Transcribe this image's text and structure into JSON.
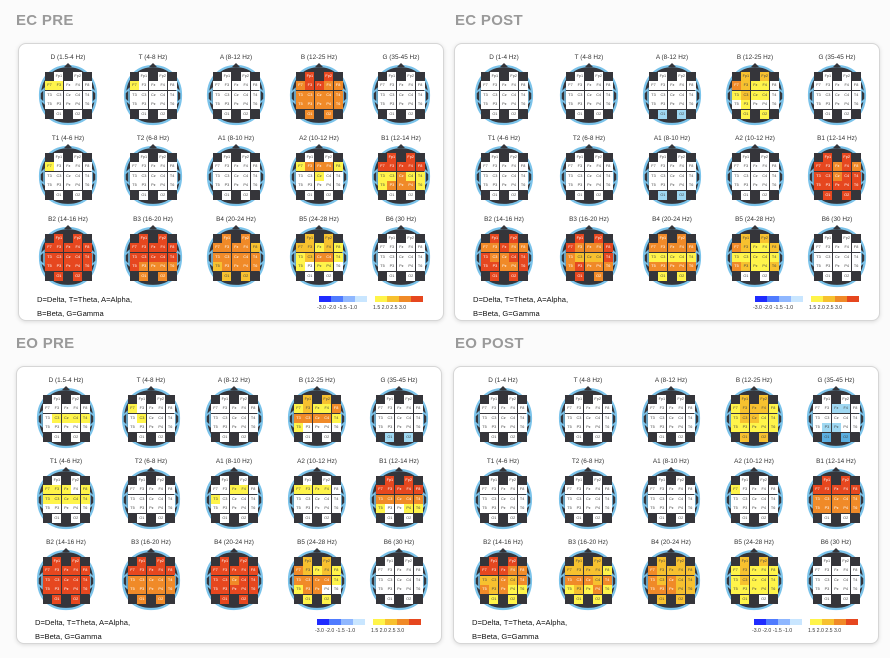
{
  "legend_lines": [
    "D=Delta, T=Theta, A=Alpha,",
    "B=Beta, G=Gamma"
  ],
  "scale_neg_ticks": "-3.0 -2.0 -1.5 -1.0",
  "scale_pos_ticks": "1.5  2.0  2.5  3.0",
  "scale_neg_colors": [
    "#1f2bff",
    "#4f7bff",
    "#8fb7ff",
    "#c9e6ff"
  ],
  "scale_pos_colors": [
    "#fff44a",
    "#f7c12f",
    "#f08a28",
    "#e6471f"
  ],
  "electrode_labels": [
    "Fp1",
    "Fp2",
    "F7",
    "F3",
    "Fz",
    "F4",
    "F8",
    "T3",
    "C3",
    "Cz",
    "C4",
    "T4",
    "T5",
    "P3",
    "Pz",
    "P4",
    "T6",
    "O1",
    "O2"
  ],
  "level_colors": {
    "w": "#ffffff",
    "y": "#fff44a",
    "Y": "#f7c12f",
    "o": "#f08a28",
    "r": "#e6471f",
    "b": "#9fd8f2",
    "B": "#5aaee0"
  },
  "panels": [
    {
      "title": "EC PRE",
      "bands": [
        "D (1.5-4 Hz)",
        "T (4-8 Hz)",
        "A (8-12 Hz)",
        "B (12-25 Hz)",
        "G (35-45 Hz)",
        "T1 (4-6 Hz)",
        "T2 (6-8 Hz)",
        "A1 (8-10 Hz)",
        "A2 (10-12 Hz)",
        "B1 (12-14 Hz)",
        "B2 (14-16 Hz)",
        "B3 (16-20 Hz)",
        "B4 (20-24 Hz)",
        "B5 (24-28 Hz)",
        "B6 (30 Hz)"
      ],
      "levels": [
        "wwyywwwwwwwwwwwwwww",
        "wwywwwwwwwwwwwwwwww",
        "wwwwwwwwwwwwwwwwwww",
        "rrorroooooooooooooo",
        "wwwwwwwwwwwwwwwwwww",
        "wwywwwwwwwwwwwwwwww",
        "wwwwwwwwwwwwwwwwwww",
        "wwwwwwwwwwwwwwwwwww",
        "wwyoooywwywwwwwwwww",
        "rrrrrrryyoyyyoooyww",
        "rrrrrrrrrrrrrrrrrrr",
        "rrrrrrrrrrrrroooooo",
        "ooooooYoooooYooooYY",
        "YYYYyYyyYooyywyywww",
        "wwwwwwwwwwwwwwwwwww"
      ]
    },
    {
      "title": "EC POST",
      "bands": [
        "D (1-4 Hz)",
        "T (4-8 Hz)",
        "A (8-12 Hz)",
        "B (12-25 Hz)",
        "G (35-45 Hz)",
        "T1 (4-6 Hz)",
        "T2 (6-8 Hz)",
        "A1 (8-10 Hz)",
        "A2 (10-12 Hz)",
        "B1 (12-14 Hz)",
        "B2 (14-16 Hz)",
        "B3 (16-20 Hz)",
        "B4 (20-24 Hz)",
        "B5 (24-28 Hz)",
        "B6 (30 Hz)"
      ],
      "levels": [
        "wwwwwwwwwwwwwwwwwww",
        "wwwwwwwwwwwwwwwwwww",
        "wwwwwwwwwwwwwwwwwbb",
        "YYoYyywyYyywwywwwyy",
        "wwwwwwwwwwwwwwwwwww",
        "wwwwwwwwwwwwwwwwwww",
        "wwwwwwwwwwwwwwwwwww",
        "wwwwwwwwwwwwwwwwwbb",
        "wwwwwwwwwwwwwwwwwww",
        "rrrrororrorrrrrrrrr",
        "rroorooroorrrroorrr",
        "rrroooroYYYroroooro",
        "oooooooyyyyyoooooyy",
        "YYoYyyYyyyyyoYyyYww",
        "wwwwwwwwwwwwwwwwwww"
      ]
    },
    {
      "title": "EO PRE",
      "bands": [
        "D (1.5-4 Hz)",
        "T (4-8 Hz)",
        "A (8-12 Hz)",
        "B (12-25 Hz)",
        "G (35-45 Hz)",
        "T1 (4-6 Hz)",
        "T2 (6-8 Hz)",
        "A1 (8-10 Hz)",
        "A2 (10-12 Hz)",
        "B1 (12-14 Hz)",
        "B2 (14-16 Hz)",
        "B3 (16-20 Hz)",
        "B4 (20-24 Hz)",
        "B5 (24-28 Hz)",
        "B6 (30 Hz)"
      ],
      "levels": [
        "wwwwwwwwyyyywwwwwww",
        "wwywwwwwywwwwwwwwww",
        "wwwwwwwwwwwwwwwwwww",
        "YYyYyyoooooyywwwwww",
        "wwwwwwwwwwwwwwwwwbb",
        "wwyyywyyyyyywwwwwww",
        "wwwwwwwwwwwwwwwwwww",
        "wwwwyywywwwwwwwwwww",
        "wwyyyywwwwwwwwwwwww",
        "rrrrrrroooooywwyyww",
        "rrrrrrrrrrrrrrrrrrr",
        "rrrrrrroooooooooooo",
        "rrrrrrrrrorrrrrrrrr",
        "YYoYyYyooooyyoowwyy",
        "wwwwwwwwwwwwwwwwwww"
      ]
    },
    {
      "title": "EO POST",
      "bands": [
        "D (1-4 Hz)",
        "T (4-8 Hz)",
        "A (8-12 Hz)",
        "B (12-25 Hz)",
        "G (35-45 Hz)",
        "T1 (4-6 Hz)",
        "T2 (6-8 Hz)",
        "A1 (8-10 Hz)",
        "A2 (10-12 Hz)",
        "B1 (12-14 Hz)",
        "B2 (14-16 Hz)",
        "B3 (16-20 Hz)",
        "B4 (20-24 Hz)",
        "B5 (24-28 Hz)",
        "B6 (30 Hz)"
      ],
      "levels": [
        "wwwwwwwwwwwwwwwwwww",
        "wwwwwwwwwwwwwwwwwww",
        "wwwwwwwwwwwwwwwwwww",
        "YYyYYYyyYYyyyyyyyYY",
        "wwwwbbwwwwwwwbbwwBB",
        "wwwwwwwwwwwwwwwwwww",
        "wwwwwwwwwwwwwwwwwww",
        "wwwwwwwwwwwwwwwwwww",
        "wwywwwwwwwwwwwwwwww",
        "rrrrrrrooooooooooww",
        "rrrrrooYYoYooYoyyyy",
        "YYYYYYyoooYoyYyoyyy",
        "YYoYYYYoYoYYoooYYYY",
        "YYyYyyyyYyyyyyyyyyw",
        "wwwwwwwwwwwwwwwwwww"
      ]
    }
  ]
}
